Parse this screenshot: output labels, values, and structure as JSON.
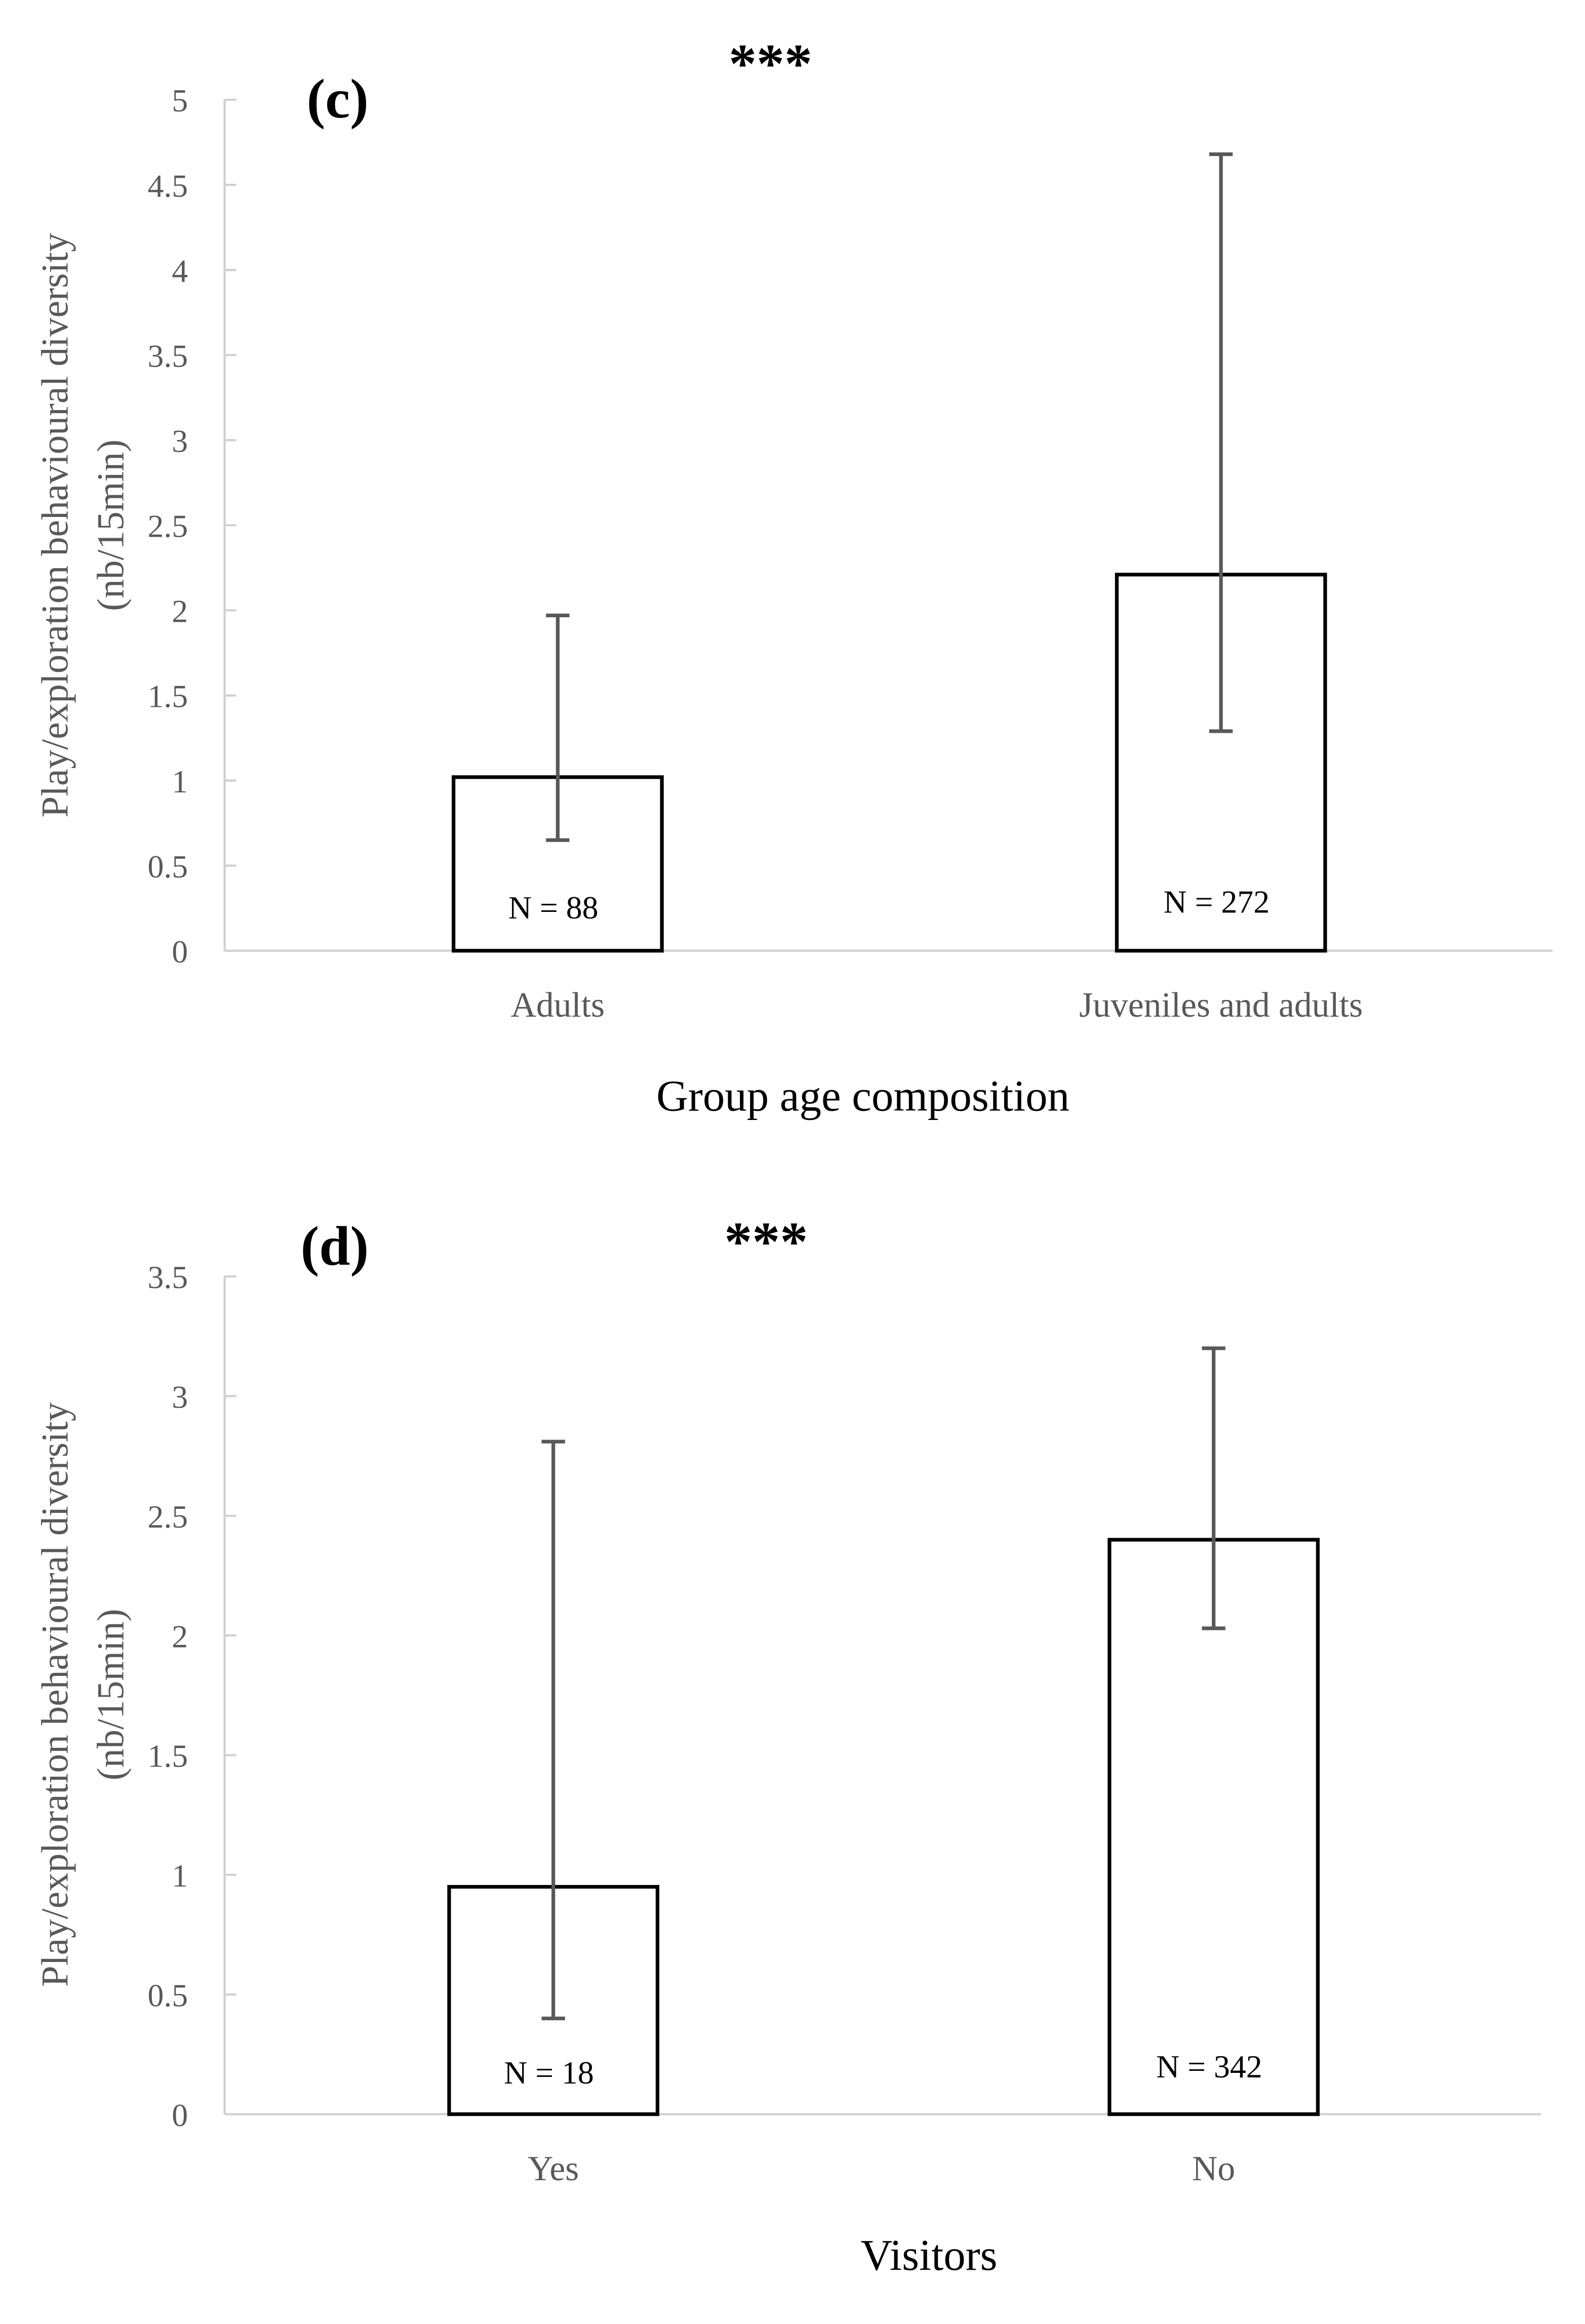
{
  "chart_data": [
    {
      "type": "bar",
      "panel_label": "(c)",
      "significance": "***",
      "title": "",
      "xlabel": "Group age composition",
      "ylabel": [
        "Play/exploration behavioural diversity",
        "(nb/15min)"
      ],
      "categories": [
        "Adults",
        "Juveniles and adults"
      ],
      "values": [
        1.02,
        2.21
      ],
      "error_upper": [
        1.97,
        4.68
      ],
      "error_lower": [
        0.65,
        1.29
      ],
      "n_labels": [
        "N = 88",
        "N = 272"
      ],
      "ylim": [
        0,
        5
      ],
      "yticks": [
        "0",
        "0.5",
        "1",
        "1.5",
        "2",
        "2.5",
        "3",
        "3.5",
        "4",
        "4.5",
        "5"
      ],
      "grid": false,
      "legend": "none"
    },
    {
      "type": "bar",
      "panel_label": "(d)",
      "significance": "***",
      "title": "",
      "xlabel": "Visitors",
      "ylabel": [
        "Play/exploration behavioural diversity",
        "(nb/15min)"
      ],
      "categories": [
        "Yes",
        "No"
      ],
      "values": [
        0.95,
        2.4
      ],
      "error_upper": [
        2.81,
        3.2
      ],
      "error_lower": [
        0.4,
        2.03
      ],
      "n_labels": [
        "N = 18",
        "N = 342"
      ],
      "ylim": [
        0,
        3.5
      ],
      "yticks": [
        "0",
        "0.5",
        "1",
        "1.5",
        "2",
        "2.5",
        "3",
        "3.5"
      ],
      "grid": false,
      "legend": "none"
    }
  ]
}
